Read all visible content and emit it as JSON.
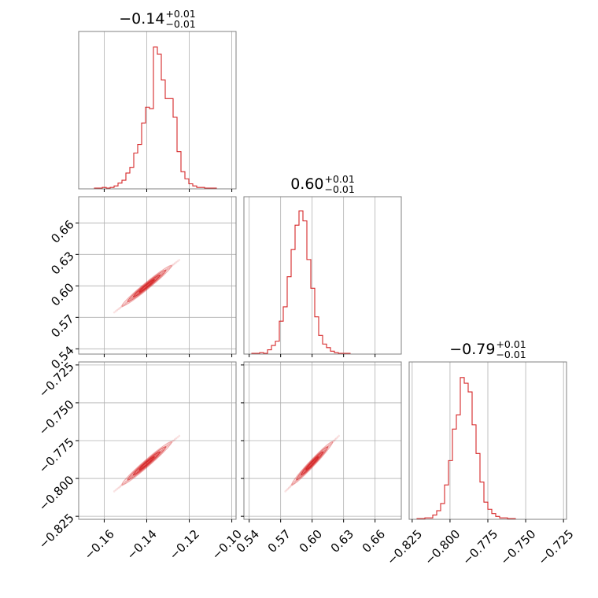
{
  "chart_data": {
    "type": "corner",
    "color": "#d62728",
    "grid": true,
    "parameters": [
      {
        "median": -0.14,
        "title": "−0.14",
        "title_plus": "+0.01",
        "title_minus": "−0.01",
        "range": [
          -0.172,
          -0.098
        ],
        "ticks": [
          -0.16,
          -0.14,
          -0.12,
          -0.1
        ],
        "tick_labels": [
          "−0.16",
          "−0.14",
          "−0.12",
          "−0.10"
        ],
        "hist": [
          0,
          0,
          0,
          0,
          0.005,
          0.005,
          0.01,
          0.005,
          0.01,
          0.02,
          0.04,
          0.06,
          0.11,
          0.15,
          0.25,
          0.31,
          0.46,
          0.57,
          0.56,
          0.99,
          0.94,
          0.76,
          0.63,
          0.63,
          0.5,
          0.26,
          0.12,
          0.07,
          0.035,
          0.02,
          0.01,
          0.01,
          0.005,
          0.005,
          0.005,
          0,
          0,
          0,
          0,
          0
        ]
      },
      {
        "median": 0.6,
        "title": "0.60",
        "title_plus": "+0.01",
        "title_minus": "−0.01",
        "range": [
          0.535,
          0.685
        ],
        "ticks": [
          0.54,
          0.57,
          0.6,
          0.63,
          0.66
        ],
        "tick_labels": [
          "0.54",
          "0.57",
          "0.60",
          "0.63",
          "0.66"
        ],
        "hist": [
          0,
          0,
          0.005,
          0.005,
          0.01,
          0.005,
          0.03,
          0.06,
          0.09,
          0.23,
          0.33,
          0.54,
          0.73,
          0.9,
          1.0,
          0.93,
          0.66,
          0.46,
          0.26,
          0.13,
          0.07,
          0.045,
          0.02,
          0.01,
          0.005,
          0.005,
          0.005,
          0,
          0,
          0,
          0,
          0,
          0,
          0,
          0,
          0,
          0,
          0,
          0,
          0
        ]
      },
      {
        "median": -0.79,
        "title": "−0.79",
        "title_plus": "+0.01",
        "title_minus": "−0.01",
        "range": [
          -0.827,
          -0.723
        ],
        "ticks": [
          -0.825,
          -0.8,
          -0.775,
          -0.75,
          -0.725
        ],
        "tick_labels": [
          "−0.825",
          "−0.800",
          "−0.775",
          "−0.750",
          "−0.725"
        ],
        "hist": [
          0,
          0,
          0.005,
          0.005,
          0.01,
          0.01,
          0.03,
          0.06,
          0.11,
          0.24,
          0.41,
          0.63,
          0.73,
          0.99,
          0.95,
          0.89,
          0.66,
          0.46,
          0.26,
          0.12,
          0.07,
          0.04,
          0.02,
          0.01,
          0.01,
          0.005,
          0.005,
          0,
          0,
          0,
          0,
          0,
          0,
          0,
          0,
          0,
          0,
          0,
          0,
          0
        ]
      }
    ],
    "correlations": [
      {
        "x": 0,
        "y": 1,
        "rho": 0.98
      },
      {
        "x": 0,
        "y": 2,
        "rho": 0.98
      },
      {
        "x": 1,
        "y": 2,
        "rho": 0.98
      }
    ],
    "sigma": [
      0.0045,
      0.0075,
      0.0055
    ]
  }
}
